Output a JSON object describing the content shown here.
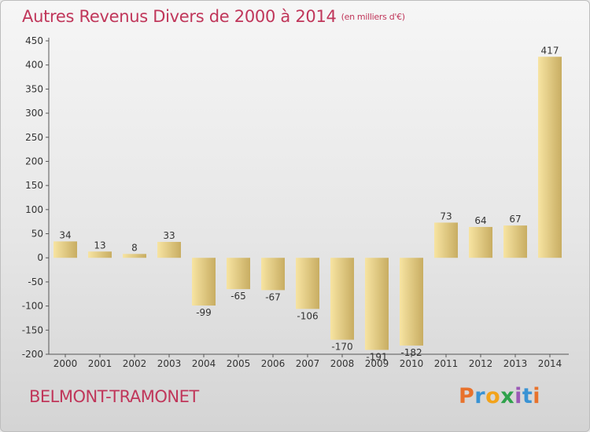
{
  "header": {
    "title": "Autres Revenus Divers de 2000 à 2014",
    "unit": "(en milliers d'€)"
  },
  "footer": {
    "place": "BELMONT-TRAMONET",
    "logo": "Proxiti"
  },
  "colors": {
    "title": "#c0365a",
    "bar_light": "#f7e4a2",
    "bar_dark": "#c8ad62",
    "axis": "#555555"
  },
  "chart_data": {
    "type": "bar",
    "title": "Autres Revenus Divers de 2000 à 2014",
    "subtitle": "(en milliers d'€)",
    "categories": [
      "2000",
      "2001",
      "2002",
      "2003",
      "2004",
      "2005",
      "2006",
      "2007",
      "2008",
      "2009",
      "2010",
      "2011",
      "2012",
      "2013",
      "2014"
    ],
    "values": [
      34,
      13,
      8,
      33,
      -99,
      -65,
      -67,
      -106,
      -170,
      -191,
      -182,
      73,
      64,
      67,
      417
    ],
    "labels": [
      "34",
      "13",
      "8",
      "33",
      "-99",
      "-65",
      "-67",
      "-106",
      "-170",
      "-191",
      "-182",
      "73",
      "64",
      "67",
      "417"
    ],
    "yticks": [
      -200,
      -150,
      -100,
      -50,
      0,
      50,
      100,
      150,
      200,
      250,
      300,
      350,
      400,
      450
    ],
    "ylim": [
      -200,
      450
    ],
    "grid": false,
    "legend": "none"
  }
}
